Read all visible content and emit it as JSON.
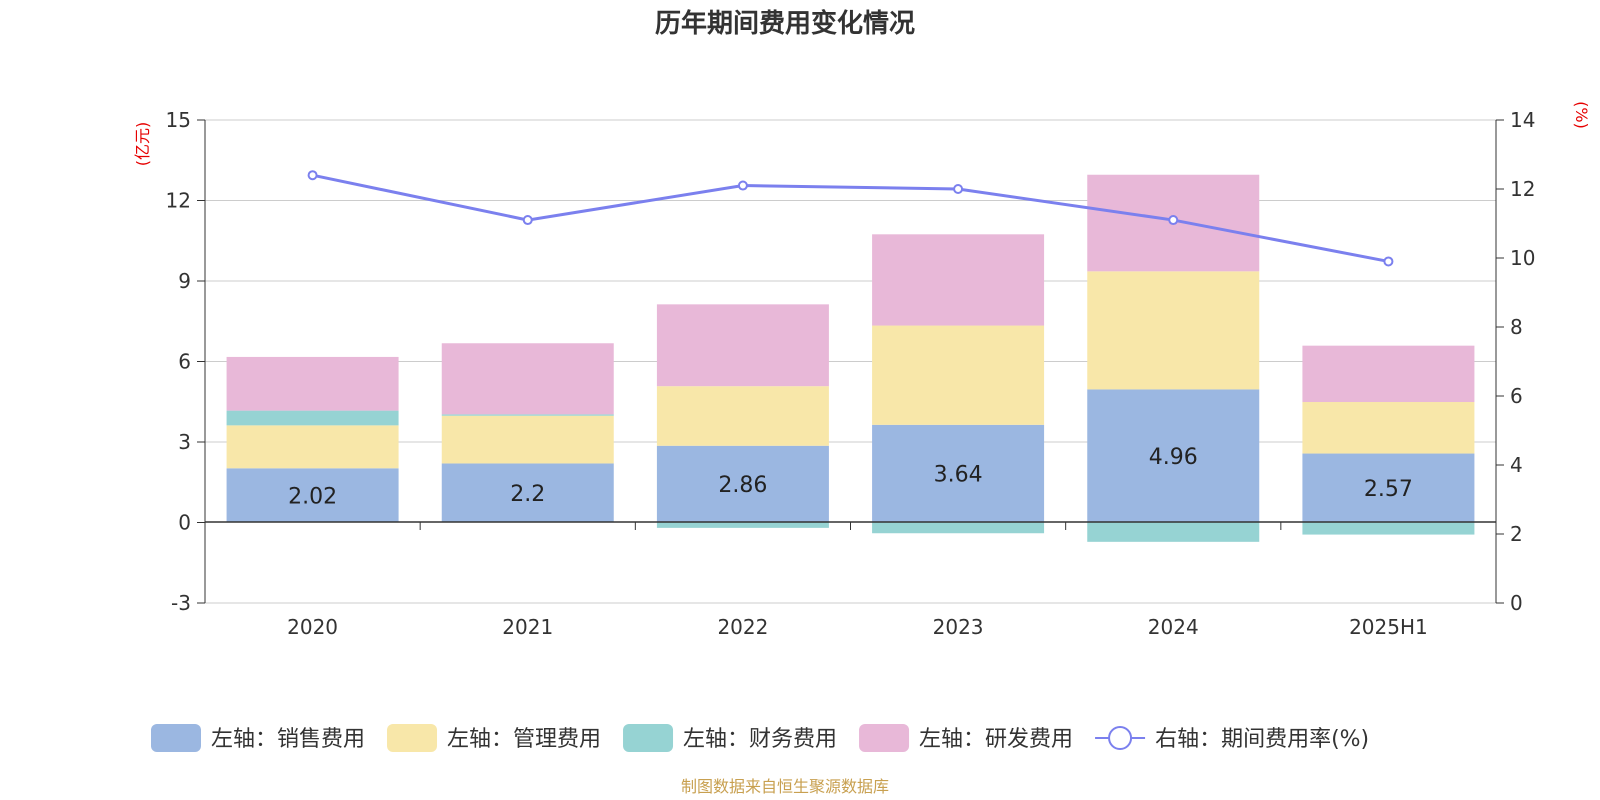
{
  "chart_data": {
    "type": "bar",
    "title": "历年期间费用变化情况",
    "categories": [
      "2020",
      "2021",
      "2022",
      "2023",
      "2024",
      "2025H1"
    ],
    "left_axis": {
      "unit": "(亿元)",
      "range": [
        -3,
        15
      ],
      "ticks": [
        "15",
        "12",
        "9",
        "6",
        "3",
        "0",
        "-3"
      ]
    },
    "right_axis": {
      "unit": "(%)",
      "range": [
        0,
        14
      ],
      "ticks": [
        "14",
        "12",
        "10",
        "8",
        "6",
        "4",
        "2",
        "0"
      ]
    },
    "series": [
      {
        "name": "左轴：销售费用",
        "type": "bar",
        "color": "#9bb7e1",
        "values": [
          2.02,
          2.2,
          2.86,
          3.64,
          4.96,
          2.57
        ]
      },
      {
        "name": "左轴：管理费用",
        "type": "bar",
        "color": "#f8e7a9",
        "values": [
          1.6,
          1.78,
          2.22,
          3.7,
          4.4,
          1.92
        ]
      },
      {
        "name": "左轴：财务费用",
        "type": "bar",
        "color": "#96d3d3",
        "values": [
          0.55,
          0.05,
          -0.2,
          -0.4,
          -0.72,
          -0.45
        ]
      },
      {
        "name": "左轴：研发费用",
        "type": "bar",
        "color": "#e8b8d8",
        "values": [
          2.0,
          2.65,
          3.05,
          3.4,
          3.6,
          2.1
        ]
      },
      {
        "name": "右轴：期间费用率(%)",
        "type": "line",
        "color": "#7b80ee",
        "axis": "right",
        "values": [
          12.4,
          11.1,
          12.1,
          12.0,
          11.1,
          9.9
        ]
      }
    ],
    "data_labels": [
      "2.02",
      "2.2",
      "2.86",
      "3.64",
      "4.96",
      "2.57"
    ],
    "grid": true,
    "legend_position": "bottom"
  },
  "source": "制图数据来自恒生聚源数据库"
}
